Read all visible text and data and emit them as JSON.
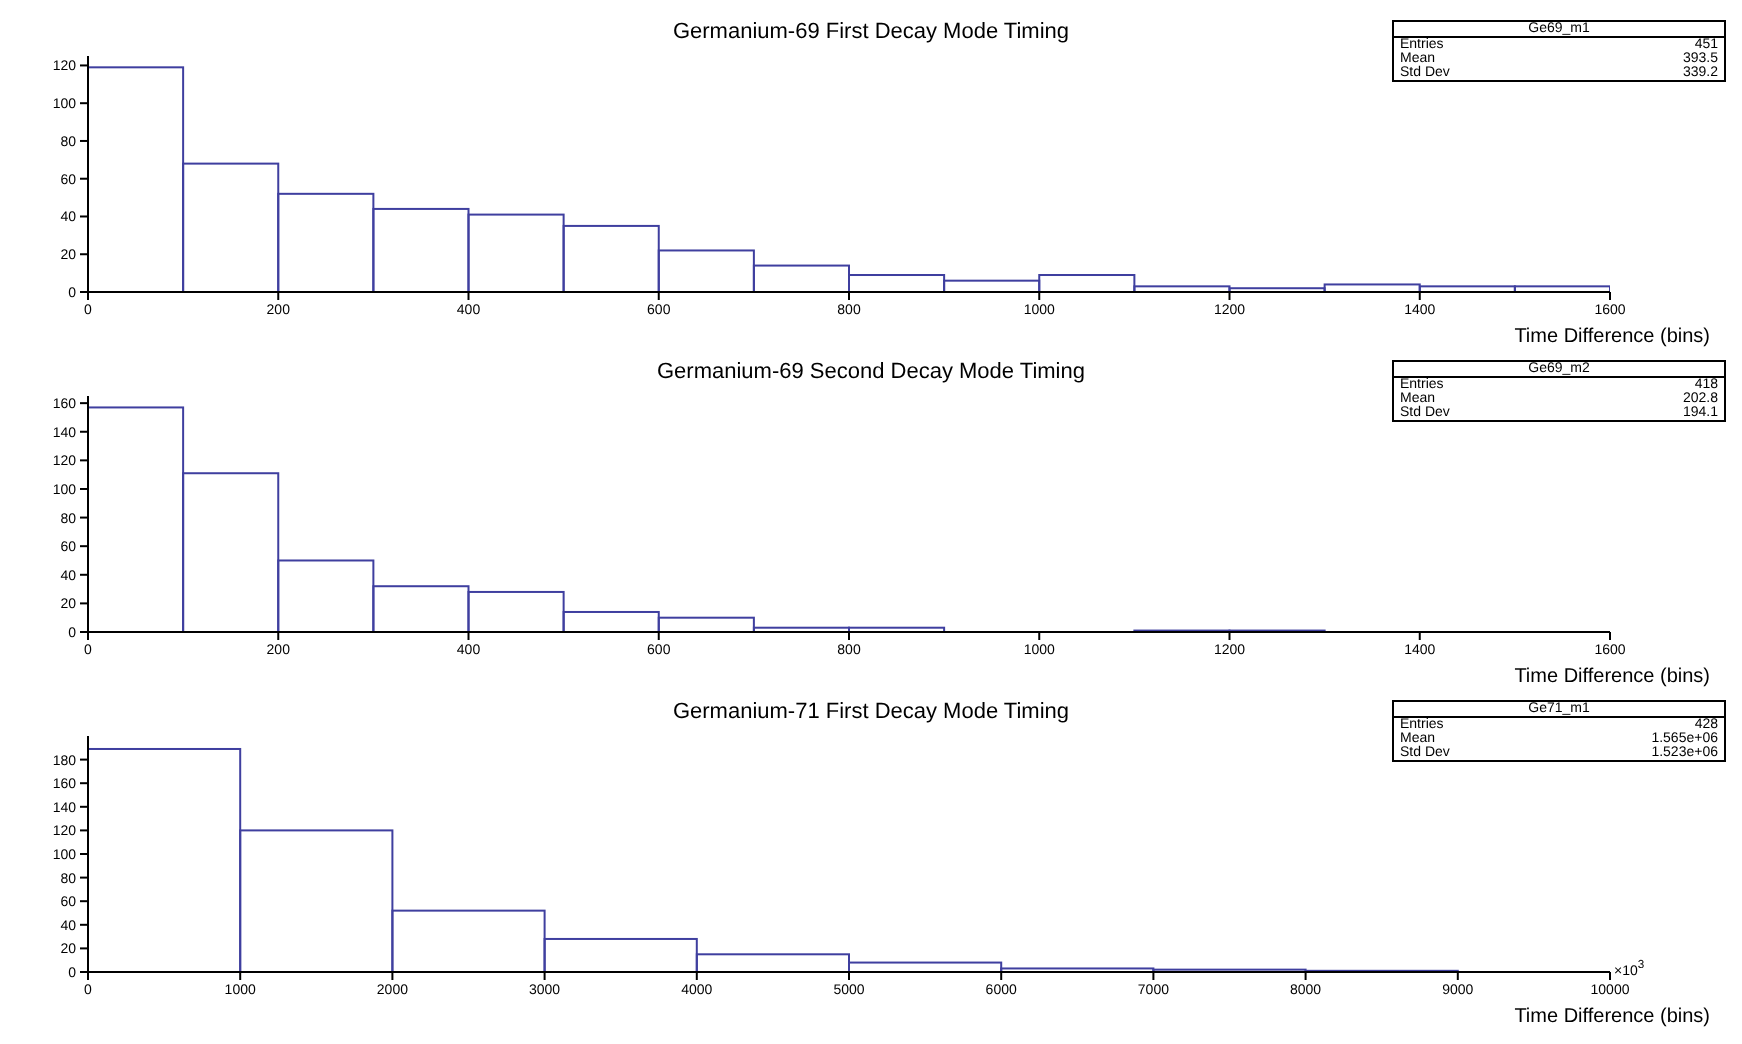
{
  "chart_data": [
    {
      "type": "histogram",
      "title": "Germanium-69 First Decay Mode Timing",
      "xlabel": "Time Difference (bins)",
      "bins": [
        0,
        100,
        200,
        300,
        400,
        500,
        600,
        700,
        800,
        900,
        1000,
        1100,
        1200,
        1300,
        1400,
        1500,
        1600
      ],
      "values": [
        119,
        68,
        52,
        44,
        41,
        35,
        22,
        14,
        9,
        6,
        9,
        3,
        2,
        4,
        3,
        3
      ],
      "color": "#3f3f9f",
      "xlim": [
        0,
        1600
      ],
      "xticks": [
        0,
        200,
        400,
        600,
        800,
        1000,
        1200,
        1400,
        1600
      ],
      "ylim": [
        0,
        125
      ],
      "yticks": [
        0,
        20,
        40,
        60,
        80,
        100,
        120
      ],
      "grid": false,
      "legend": false,
      "annotations": [
        "Ge69_m1",
        "Entries",
        "451",
        "Mean",
        "393.5",
        "Std Dev",
        "339.2"
      ]
    },
    {
      "type": "histogram",
      "title": "Germanium-69 Second Decay Mode Timing",
      "xlabel": "Time Difference (bins)",
      "bins": [
        0,
        100,
        200,
        300,
        400,
        500,
        600,
        700,
        800,
        900,
        1000,
        1100,
        1200,
        1300,
        1400,
        1500,
        1600
      ],
      "values": [
        157,
        111,
        50,
        32,
        28,
        14,
        10,
        3,
        3,
        0,
        0,
        1,
        1,
        0,
        0,
        0
      ],
      "color": "#3f3f9f",
      "xlim": [
        0,
        1600
      ],
      "xticks": [
        0,
        200,
        400,
        600,
        800,
        1000,
        1200,
        1400,
        1600
      ],
      "ylim": [
        0,
        165
      ],
      "yticks": [
        0,
        20,
        40,
        60,
        80,
        100,
        120,
        140,
        160
      ],
      "grid": false,
      "legend": false,
      "annotations": [
        "Ge69_m2",
        "Entries",
        "418",
        "Mean",
        "202.8",
        "Std Dev",
        "194.1"
      ]
    },
    {
      "type": "histogram",
      "title": "Germanium-71 First Decay Mode Timing",
      "xlabel": "Time Difference (bins)",
      "bins": [
        0,
        1000,
        2000,
        3000,
        4000,
        5000,
        6000,
        7000,
        8000,
        9000,
        10000
      ],
      "values": [
        189,
        120,
        52,
        28,
        15,
        8,
        3,
        2,
        1,
        0
      ],
      "color": "#3f3f9f",
      "xlim": [
        0,
        10000
      ],
      "xticks": [
        0,
        1000,
        2000,
        3000,
        4000,
        5000,
        6000,
        7000,
        8000,
        9000,
        10000
      ],
      "ylim": [
        0,
        200
      ],
      "yticks": [
        0,
        20,
        40,
        60,
        80,
        100,
        120,
        140,
        160,
        180
      ],
      "grid": false,
      "legend": false,
      "annotations": [
        "Ge71_m1",
        "Entries",
        "428",
        "Mean",
        "1.565e+06",
        "Std Dev",
        "1.523e+06",
        "×10$^{3}$"
      ]
    }
  ]
}
